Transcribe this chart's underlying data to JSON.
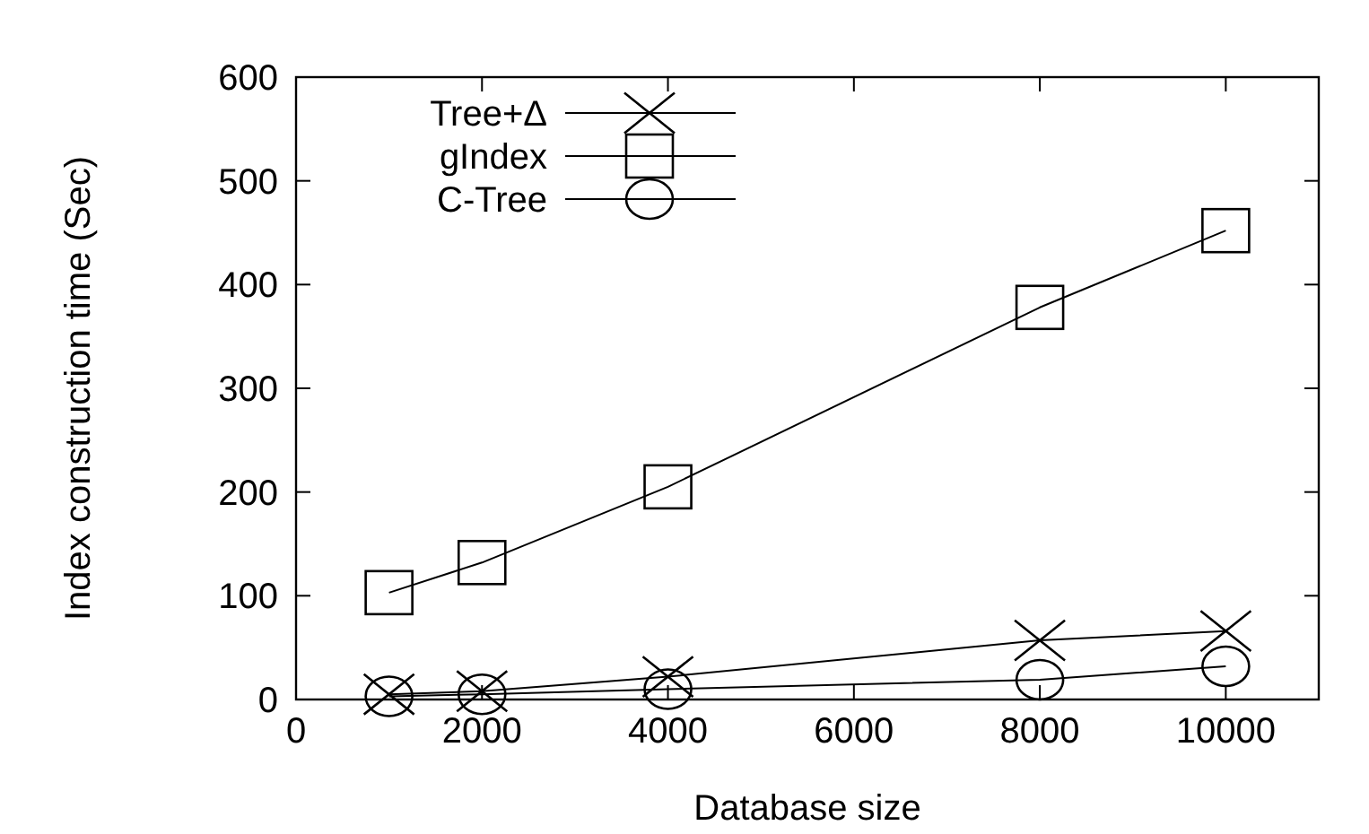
{
  "chart_data": {
    "type": "line",
    "xlabel": "Database size",
    "ylabel": "Index construction time (Sec)",
    "x": [
      1000,
      2000,
      4000,
      8000,
      10000
    ],
    "series": [
      {
        "name": "Tree+Δ",
        "color": "#000000",
        "marker": "cross",
        "values": [
          5,
          8,
          22,
          57,
          66
        ]
      },
      {
        "name": "gIndex",
        "color": "#000000",
        "marker": "square",
        "values": [
          103,
          132,
          205,
          378,
          452
        ]
      },
      {
        "name": "C-Tree",
        "color": "#000000",
        "marker": "circle",
        "values": [
          3,
          5,
          10,
          19,
          32
        ]
      }
    ],
    "xlim": [
      0,
      11000
    ],
    "xticks": [
      0,
      2000,
      4000,
      6000,
      8000,
      10000
    ],
    "ylim": [
      0,
      600
    ],
    "yticks": [
      0,
      100,
      200,
      300,
      400,
      500,
      600
    ],
    "legend": "top left",
    "grid": false,
    "line_style": "solid"
  }
}
